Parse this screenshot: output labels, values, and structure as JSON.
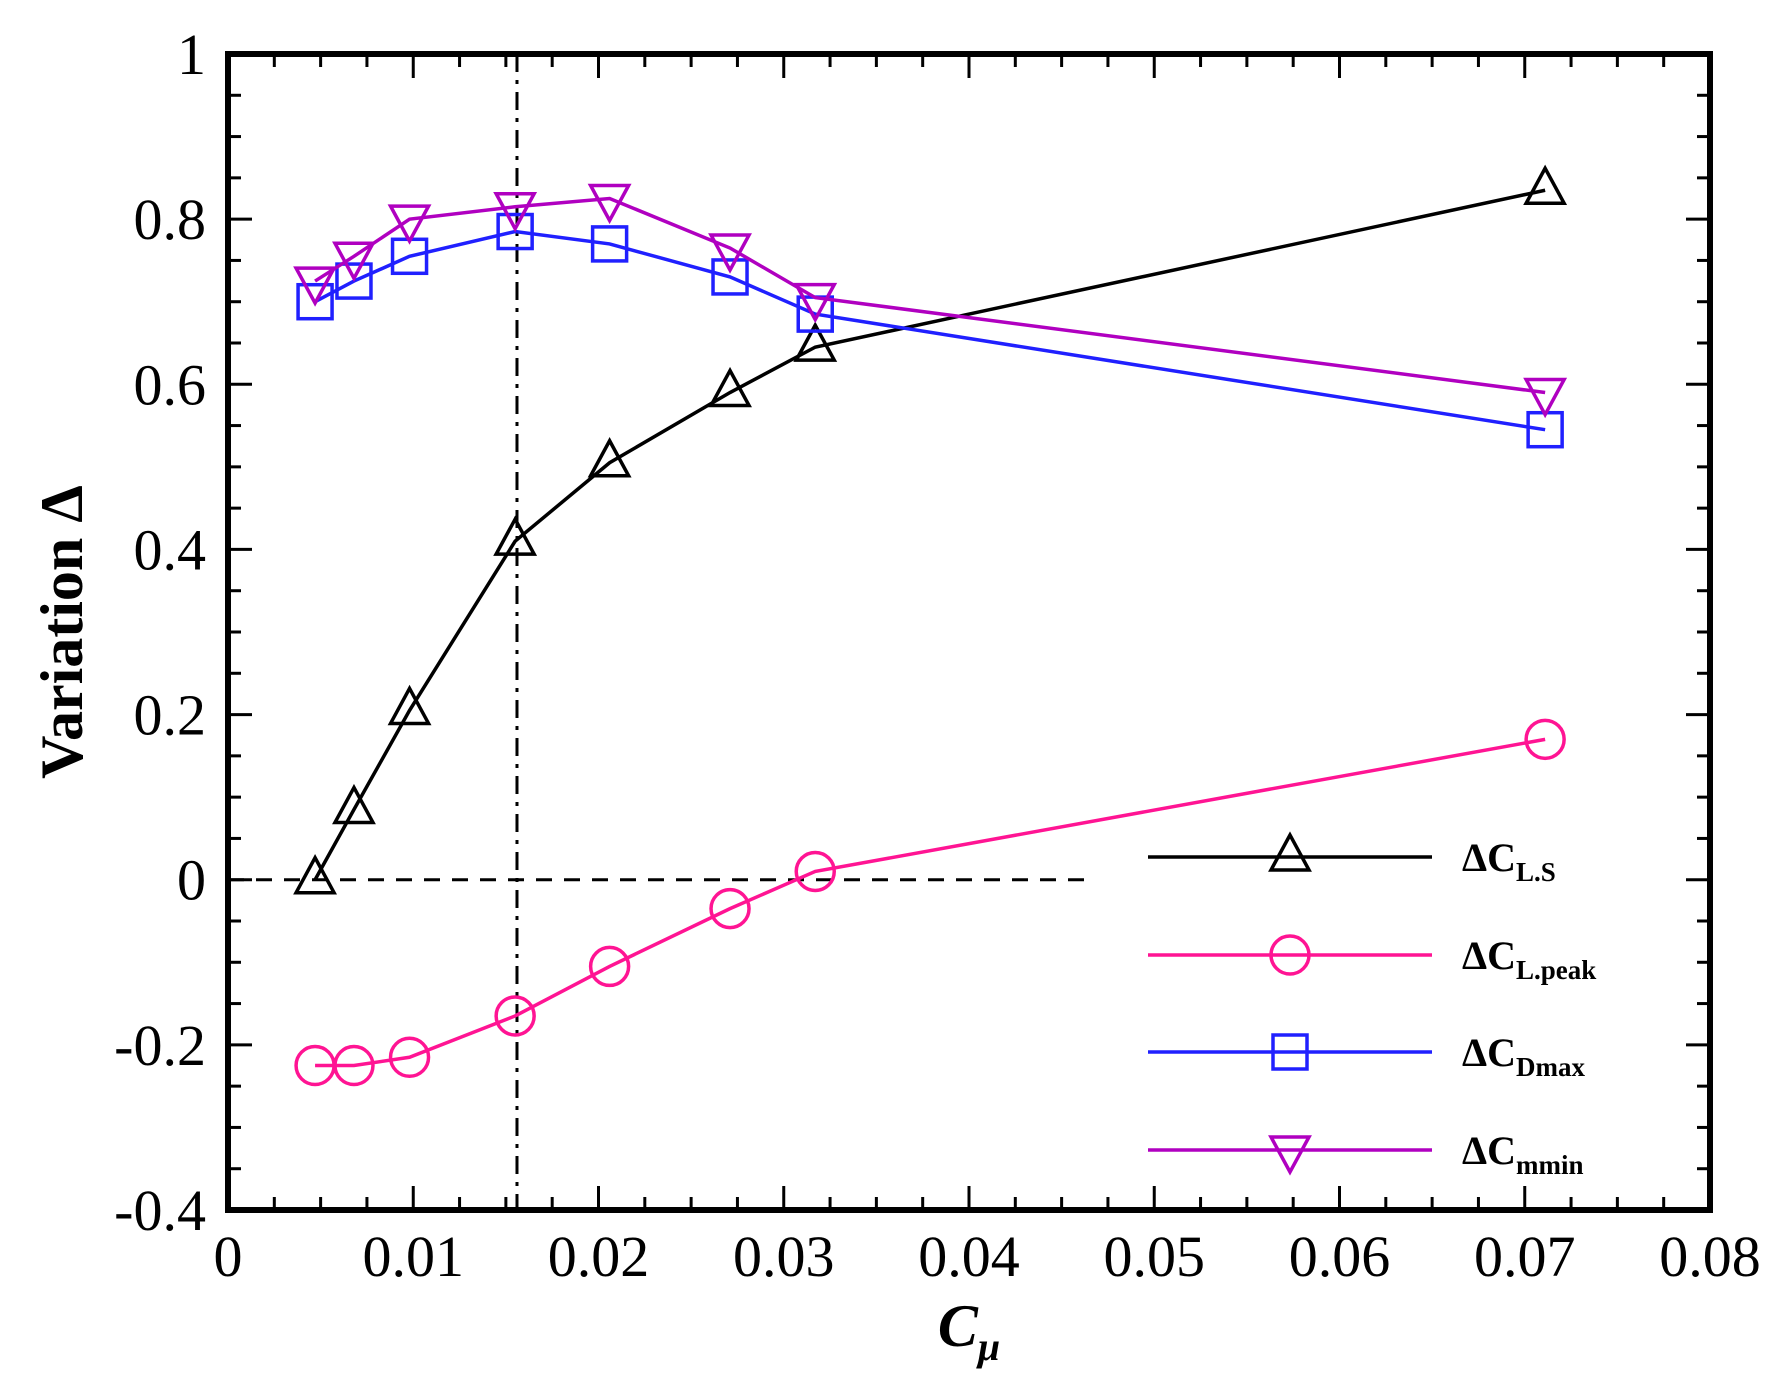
{
  "chart_data": {
    "type": "line",
    "xlabel": "C",
    "xlabel_sub": "μ",
    "ylabel": "Variation Δ",
    "xlim": [
      0,
      0.08
    ],
    "ylim": [
      -0.4,
      1
    ],
    "xticks": [
      0,
      0.01,
      0.02,
      0.03,
      0.04,
      0.05,
      0.06,
      0.07,
      0.08
    ],
    "xtick_labels": [
      "0",
      "0.01",
      "0.02",
      "0.03",
      "0.04",
      "0.05",
      "0.06",
      "0.07",
      "0.08"
    ],
    "yticks": [
      -0.4,
      -0.2,
      0,
      0.2,
      0.4,
      0.6,
      0.8,
      1
    ],
    "ytick_labels": [
      "-0.4",
      "-0.2",
      "0",
      "0.2",
      "0.4",
      "0.6",
      "0.8",
      "1"
    ],
    "reference_lines": {
      "horizontal_dashed_y": 0,
      "horizontal_dashed_x_end": 0.0468,
      "vertical_dashdot_x": 0.0156
    },
    "legend_position": "bottom-right",
    "x": [
      0.0047,
      0.0068,
      0.0098,
      0.0155,
      0.0206,
      0.0271,
      0.0317,
      0.0711
    ],
    "series": [
      {
        "name": "ΔC",
        "name_sub": "L.S",
        "color": "#000000",
        "marker": "triangle-up",
        "values": [
          0.0,
          0.085,
          0.205,
          0.41,
          0.505,
          0.59,
          0.645,
          0.835
        ]
      },
      {
        "name": "ΔC",
        "name_sub": "L.peak",
        "color": "#ff1493",
        "marker": "circle",
        "values": [
          -0.225,
          -0.225,
          -0.215,
          -0.165,
          -0.105,
          -0.035,
          0.01,
          0.17
        ]
      },
      {
        "name": "ΔC",
        "name_sub": "Dmax",
        "color": "#2020ff",
        "marker": "square",
        "values": [
          0.7,
          0.725,
          0.755,
          0.785,
          0.77,
          0.73,
          0.685,
          0.545
        ]
      },
      {
        "name": "ΔC",
        "name_sub": "mmin",
        "color": "#b000c0",
        "marker": "triangle-down",
        "values": [
          0.725,
          0.755,
          0.8,
          0.815,
          0.825,
          0.765,
          0.705,
          0.59
        ]
      }
    ]
  }
}
